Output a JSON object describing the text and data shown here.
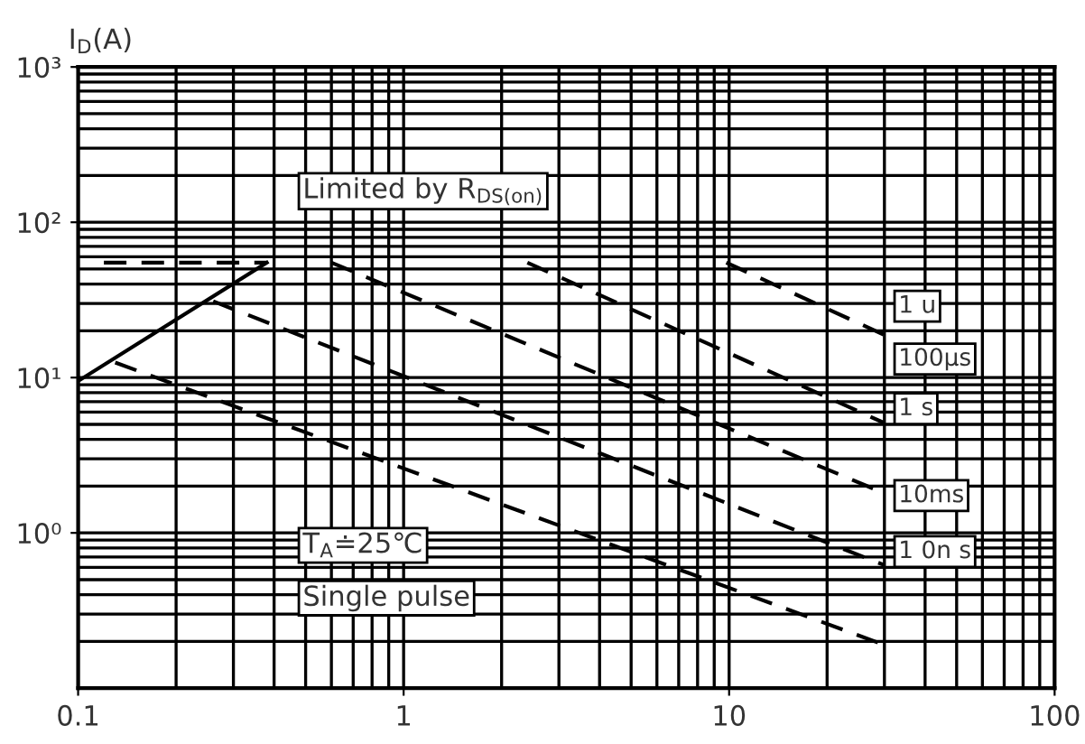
{
  "chart_data": {
    "type": "line",
    "ylabel": "I$_{D}$(A)",
    "xlim": [
      0.1,
      100
    ],
    "xticks": [
      0.1,
      1,
      10,
      100
    ],
    "ylim": [
      0.1,
      1000
    ],
    "yticks": [
      {
        "value": 1,
        "label": "10⁰"
      },
      {
        "value": 10,
        "label": "10¹"
      },
      {
        "value": 100,
        "label": "10²"
      },
      {
        "value": 1000,
        "label": "10³"
      }
    ],
    "log": "xy",
    "grid": true,
    "marker": "none",
    "series": [
      {
        "color": "#000000",
        "line_style": "solid",
        "x": [
          0.1,
          0.38
        ],
        "values": [
          9.5,
          55
        ]
      },
      {
        "color": "#000000",
        "line_style": "dashed",
        "x": [
          0.12,
          0.38
        ],
        "values": [
          55,
          55
        ]
      },
      {
        "color": "#000000",
        "line_style": "dashed",
        "x": [
          9.8,
          30
        ],
        "values": [
          55,
          18.8
        ]
      },
      {
        "color": "#000000",
        "line_style": "dashed",
        "x": [
          2.4,
          30
        ],
        "values": [
          55,
          5.1
        ]
      },
      {
        "color": "#000000",
        "line_style": "dashed",
        "x": [
          0.6,
          30
        ],
        "values": [
          55,
          1.8
        ]
      },
      {
        "color": "#000000",
        "line_style": "dashed",
        "x": [
          0.26,
          30
        ],
        "values": [
          31,
          0.62
        ]
      },
      {
        "color": "#000000",
        "line_style": "dashed",
        "x": [
          0.13,
          30
        ],
        "values": [
          12.5,
          0.19
        ]
      }
    ],
    "annotations": [
      "Limited by R$_{DS(on)}$",
      "1 u",
      "100μs",
      "1 s",
      "10ms",
      "1 0n s",
      "T$_{A}$≐25℃",
      "Single pulse"
    ]
  }
}
